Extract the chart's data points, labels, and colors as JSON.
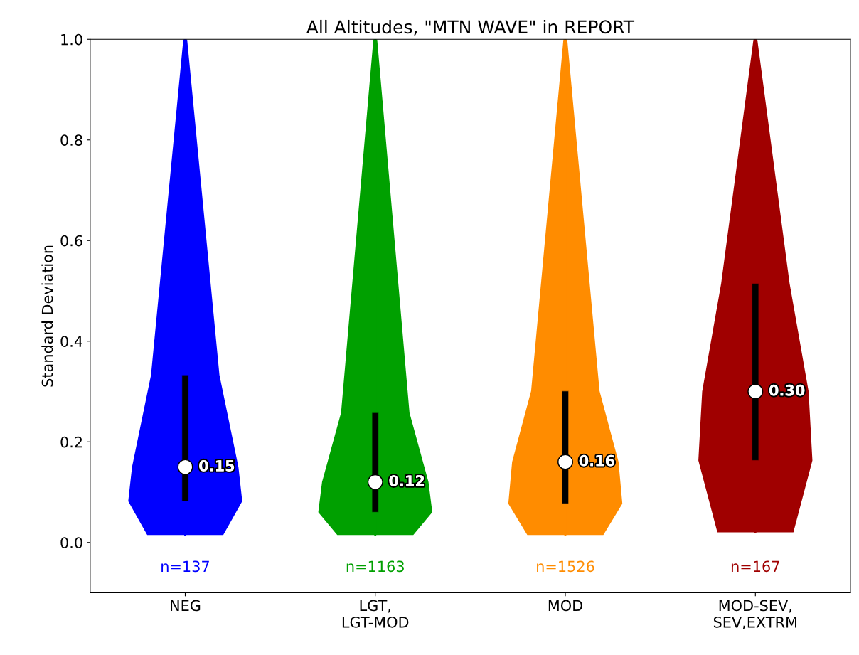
{
  "chart_data": {
    "type": "box",
    "title": "All Altitudes, \"MTN WAVE\" in REPORT",
    "ylabel": "Standard Deviation",
    "categories": [
      "NEG",
      "LGT,\nLGT-MOD",
      "MOD",
      "MOD-SEV,\nSEV,EXTRM"
    ],
    "colors": [
      "#0000ff",
      "#00a000",
      "#ff8c00",
      "#a00000"
    ],
    "boxes": [
      {
        "low": 0.015,
        "q1": 0.082,
        "median": 0.15,
        "q3": 0.333,
        "high": 1.0
      },
      {
        "low": 0.015,
        "q1": 0.06,
        "median": 0.12,
        "q3": 0.258,
        "high": 1.0
      },
      {
        "low": 0.015,
        "q1": 0.077,
        "median": 0.16,
        "q3": 0.301,
        "high": 1.0
      },
      {
        "low": 0.02,
        "q1": 0.163,
        "median": 0.3,
        "q3": 0.515,
        "high": 1.0
      }
    ],
    "value_labels": [
      "0.15",
      "0.12",
      "0.16",
      "0.30"
    ],
    "ylim": [
      -0.1,
      1.0
    ],
    "yticks": [
      {
        "value": 0,
        "label": "0.0"
      },
      {
        "value": 0.2,
        "label": "0.2"
      },
      {
        "value": 0.4,
        "label": "0.4"
      },
      {
        "value": 0.6,
        "label": "0.6"
      },
      {
        "value": 0.8,
        "label": "0.8"
      },
      {
        "value": 1.0,
        "label": "1.0"
      }
    ],
    "annotations": [
      "n=137",
      "n=1163",
      "n=1526",
      "n=167"
    ],
    "grid": false
  }
}
